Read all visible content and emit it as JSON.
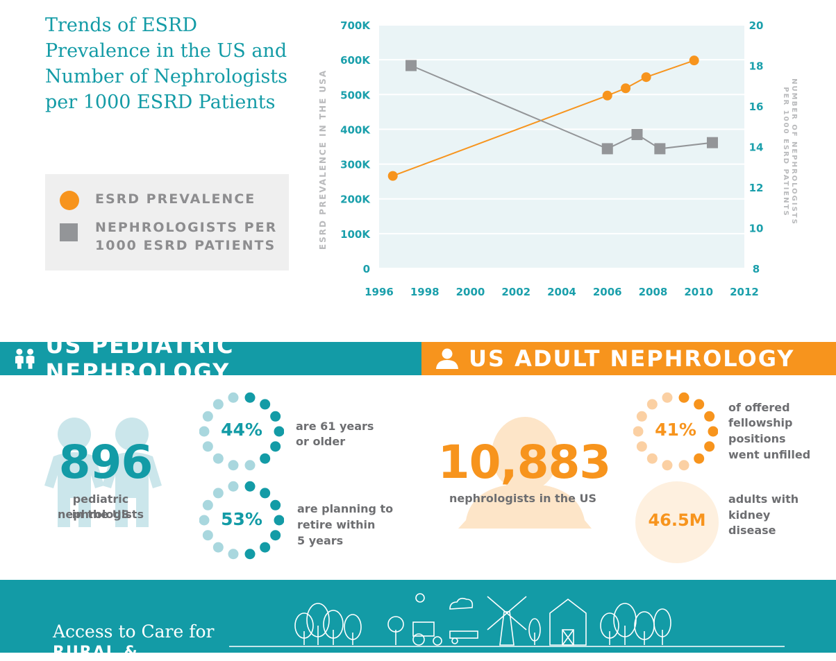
{
  "title": "Trends of ESRD Prevalence in the US and Number of Nephrologists per 1000 ESRD Patients",
  "legend": {
    "esrd": "ESRD PREVALENCE",
    "neph_line1": "NEPHROLOGISTS PER",
    "neph_line2": "1000 ESRD PATIENTS"
  },
  "colors": {
    "teal": "#139ba6",
    "orange": "#f7941d",
    "gray": "#939598",
    "plot_bg": "#eaf4f6"
  },
  "chart_data": {
    "type": "line",
    "title": "Trends of ESRD Prevalence in the US and Number of Nephrologists per 1000 ESRD Patients",
    "xlabel": "",
    "ylabel": "ESRD PREVALENCE IN THE USA",
    "y2label_line1": "NUMBER OF NEPHROLOGISTS",
    "y2label_line2": "PER 1000 ESRD PATIENTS",
    "xlim": [
      1996,
      2012
    ],
    "ylim": [
      0,
      700000
    ],
    "y2lim": [
      8,
      20
    ],
    "x_ticks": [
      "1996",
      "1998",
      "2000",
      "2002",
      "2004",
      "2006",
      "2008",
      "2010",
      "2012"
    ],
    "y_ticks": [
      "0",
      "100K",
      "200K",
      "300K",
      "400K",
      "500K",
      "600K",
      "700K"
    ],
    "y2_ticks": [
      "8",
      "10",
      "12",
      "14",
      "16",
      "18",
      "20"
    ],
    "grid": true,
    "legend_position": "left",
    "series": [
      {
        "name": "ESRD PREVALENCE",
        "axis": "left",
        "marker": "circle",
        "x": [
          1996.6,
          2006.0,
          2006.8,
          2007.7,
          2009.8
        ],
        "y": [
          266000,
          497000,
          518000,
          550000,
          598000
        ]
      },
      {
        "name": "NEPHROLOGISTS PER 1000 ESRD PATIENTS",
        "axis": "right",
        "marker": "square",
        "x": [
          1997.4,
          2006.0,
          2007.3,
          2008.3,
          2010.6
        ],
        "y": [
          18.0,
          13.9,
          14.6,
          13.9,
          14.2
        ]
      }
    ]
  },
  "pediatric": {
    "header": "US PEDIATRIC NEPHROLOGY",
    "count": "896",
    "count_caption_1": "pediatric nephrologists",
    "count_caption_2": "in the US",
    "stat1": {
      "value": "44%",
      "text1": "are 61 years",
      "text2": "or older",
      "fraction": 0.44
    },
    "stat2": {
      "value": "53%",
      "text1": "are planning to",
      "text2": "retire within",
      "text3": "5 years",
      "fraction": 0.53
    }
  },
  "adult": {
    "header": "US ADULT NEPHROLOGY",
    "count": "10,883",
    "count_caption": "nephrologists in the US",
    "stat1": {
      "value": "41%",
      "text1": "of offered",
      "text2": "fellowship",
      "text3": "positions",
      "text4": "went unfilled",
      "fraction": 0.41
    },
    "stat2": {
      "value": "46.5M",
      "text1": "adults with",
      "text2": "kidney",
      "text3": "disease"
    }
  },
  "access": {
    "title": "Access to Care for",
    "subtitle": "RURAL &"
  }
}
